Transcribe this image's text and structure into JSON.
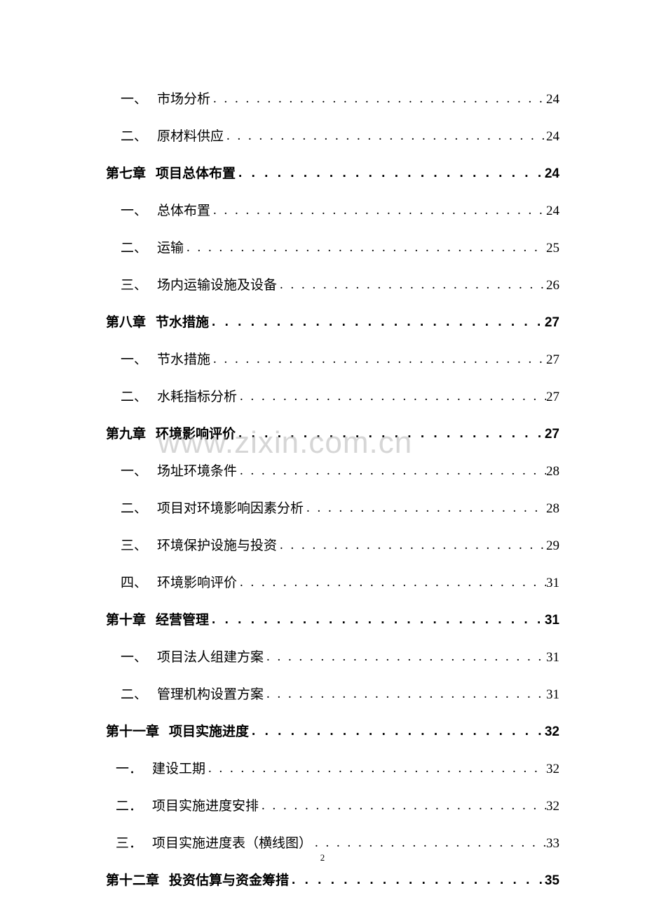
{
  "watermark": "www.zixin.com.cn",
  "page_number": "2",
  "entries": [
    {
      "type": "section",
      "marker": "一、",
      "title": "市场分析",
      "page": "24"
    },
    {
      "type": "section",
      "marker": "二、",
      "title": "原材料供应",
      "page": "24"
    },
    {
      "type": "chapter",
      "marker": "第七章",
      "title": "项目总体布置",
      "page": "24"
    },
    {
      "type": "section",
      "marker": "一、",
      "title": "总体布置",
      "page": "24"
    },
    {
      "type": "section",
      "marker": "二、",
      "title": "运输",
      "page": "25"
    },
    {
      "type": "section",
      "marker": "三、",
      "title": "场内运输设施及设备",
      "page": "26"
    },
    {
      "type": "chapter",
      "marker": "第八章",
      "title": "节水措施",
      "page": "27"
    },
    {
      "type": "section",
      "marker": "一、",
      "title": "节水措施",
      "page": "27"
    },
    {
      "type": "section",
      "marker": "二、",
      "title": "水耗指标分析",
      "page": "27"
    },
    {
      "type": "chapter",
      "marker": "第九章",
      "title": "环境影响评价",
      "page": "27"
    },
    {
      "type": "section",
      "marker": "一、",
      "title": "场址环境条件",
      "page": "28"
    },
    {
      "type": "section",
      "marker": "二、",
      "title": "项目对环境影响因素分析",
      "page": "28"
    },
    {
      "type": "section",
      "marker": "三、",
      "title": "环境保护设施与投资",
      "page": "29"
    },
    {
      "type": "section",
      "marker": "四、",
      "title": "环境影响评价",
      "page": "31"
    },
    {
      "type": "chapter",
      "marker": "第十章",
      "title": "经营管理",
      "page": "31"
    },
    {
      "type": "section",
      "marker": "一、",
      "title": "项目法人组建方案",
      "page": "31"
    },
    {
      "type": "section",
      "marker": "二、",
      "title": "管理机构设置方案",
      "page": "31"
    },
    {
      "type": "chapter-wide",
      "marker": "第十一章",
      "title": "项目实施进度",
      "page": "32"
    },
    {
      "type": "section-wide",
      "marker": "一．",
      "title": "建设工期",
      "page": "32"
    },
    {
      "type": "section-wide",
      "marker": "二．",
      "title": "项目实施进度安排",
      "page": "32"
    },
    {
      "type": "section-wide",
      "marker": "三．",
      "title": "项目实施进度表（横线图）",
      "page": "33"
    },
    {
      "type": "chapter-wide",
      "marker": "第十二章",
      "title": "投资估算与资金筹措",
      "page": "35"
    }
  ]
}
